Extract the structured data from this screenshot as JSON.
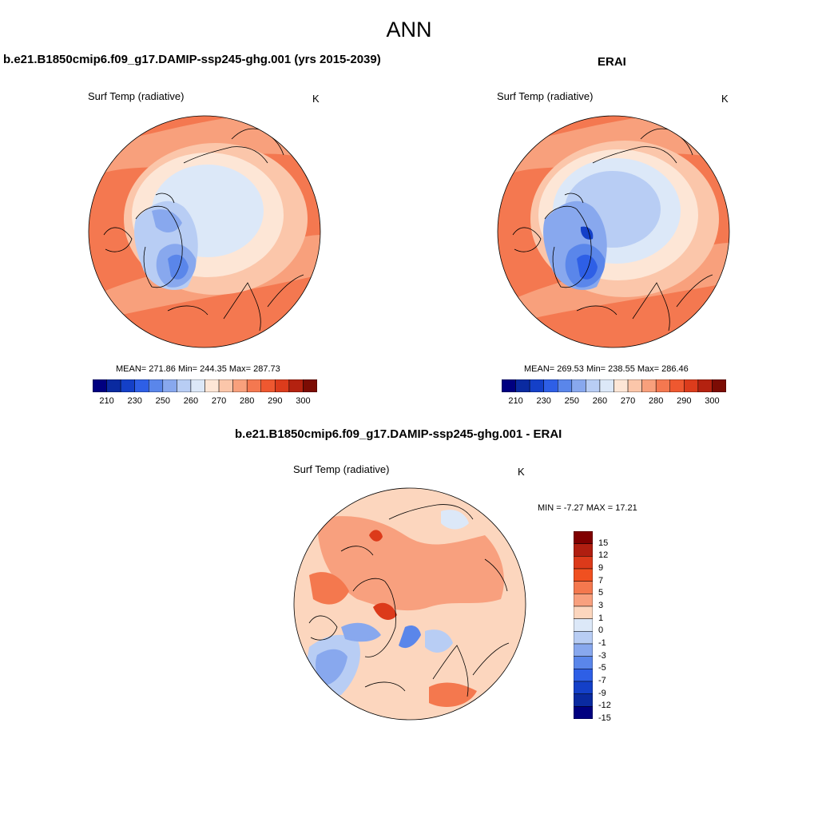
{
  "title": "ANN",
  "units": "K",
  "variable": "Surf Temp (radiative)",
  "panels": {
    "left": {
      "title": "b.e21.B1850cmip6.f09_g17.DAMIP-ssp245-ghg.001 (yrs 2015-2039)",
      "variable": "Surf Temp (radiative)",
      "units": "K",
      "stats": "MEAN= 271.86  Min= 244.35  Max= 287.73",
      "mean": 271.86,
      "min": 244.35,
      "max": 287.73
    },
    "right": {
      "title": "ERAI",
      "variable": "Surf Temp (radiative)",
      "units": "K",
      "stats": "MEAN= 269.53  Min= 238.55  Max= 286.46",
      "mean": 269.53,
      "min": 238.55,
      "max": 286.46
    },
    "diff": {
      "title": "b.e21.B1850cmip6.f09_g17.DAMIP-ssp245-ghg.001 - ERAI",
      "variable": "Surf Temp (radiative)",
      "units": "K",
      "stats": "MIN =  -7.27 MAX =  17.21",
      "min": -7.27,
      "max": 17.21
    }
  },
  "colorbar_abs": {
    "colors": [
      "#000080",
      "#0a2aa0",
      "#1440c8",
      "#2e5fe6",
      "#5a86ea",
      "#88a8ee",
      "#b8cdf4",
      "#dce8f8",
      "#fde6d6",
      "#fbc6aa",
      "#f8a07c",
      "#f47850",
      "#ee5830",
      "#dc3c1c",
      "#b42210",
      "#7c0c04"
    ],
    "labels": [
      "210",
      "230",
      "250",
      "260",
      "270",
      "280",
      "290",
      "300"
    ]
  },
  "colorbar_diff": {
    "colors": [
      "#800000",
      "#b01e10",
      "#dc3a1a",
      "#f05020",
      "#f4784e",
      "#f8a07e",
      "#fcd6be",
      "#dce8f8",
      "#b8cdf4",
      "#88a8ee",
      "#5a86ea",
      "#2e5fe6",
      "#1440c8",
      "#0a2aa0",
      "#000080"
    ],
    "labels": [
      "15",
      "12",
      "9",
      "7",
      "5",
      "3",
      "1",
      "0",
      "-1",
      "-3",
      "-5",
      "-7",
      "-9",
      "-12",
      "-15"
    ]
  }
}
